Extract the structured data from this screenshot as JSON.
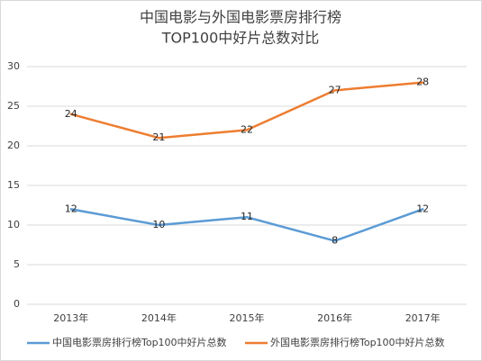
{
  "chart_data": {
    "type": "line",
    "title": [
      "中国电影与外国电影票房排行榜",
      "TOP100中好片总数对比"
    ],
    "categories": [
      "2013年",
      "2014年",
      "2015年",
      "2016年",
      "2017年"
    ],
    "series": [
      {
        "name": "中国电影票房排行榜Top100中好片总数",
        "color": "#5b9bd5",
        "values": [
          12,
          10,
          11,
          8,
          12
        ]
      },
      {
        "name": "外国电影票房排行榜Top100中好片总数",
        "color": "#ed7d31",
        "values": [
          24,
          21,
          22,
          27,
          28
        ]
      }
    ],
    "ylim": [
      0,
      30
    ],
    "yticks": [
      0,
      5,
      10,
      15,
      20,
      25,
      30
    ],
    "grid": true,
    "legend": "bottom"
  }
}
